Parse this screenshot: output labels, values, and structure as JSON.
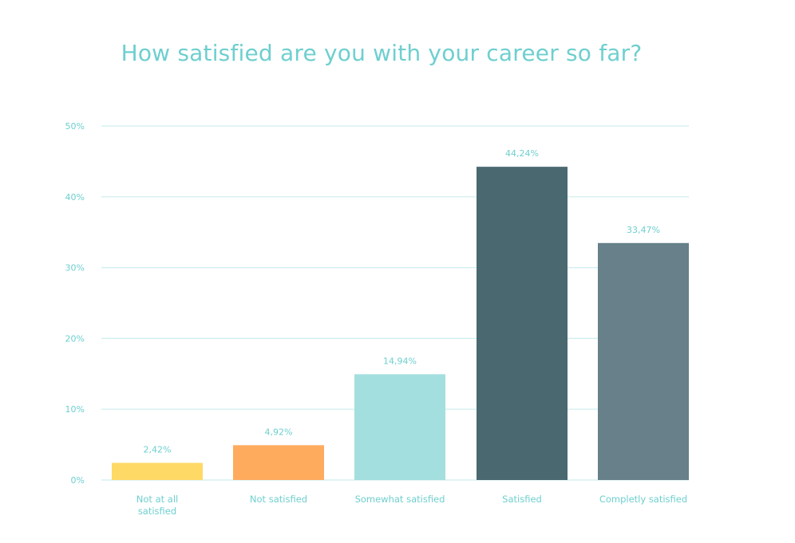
{
  "chart_data": {
    "type": "bar",
    "title": "How satisfied are you with your career so far?",
    "categories": [
      "Not at all satisfied",
      "Not satisfied",
      "Somewhat satisfied",
      "Satisfied",
      "Completly satisfied"
    ],
    "category_lines": [
      [
        "Not at all",
        "satisfied"
      ],
      [
        "Not satisfied"
      ],
      [
        "Somewhat satisfied"
      ],
      [
        "Satisfied"
      ],
      [
        "Completly satisfied"
      ]
    ],
    "values": [
      2.42,
      4.92,
      14.94,
      44.24,
      33.47
    ],
    "value_labels": [
      "2,42%",
      "4,92%",
      "14,94%",
      "44,24%",
      "33,47%"
    ],
    "colors": [
      "#ffd966",
      "#ffab5e",
      "#a3dfde",
      "#4a6870",
      "#67808a"
    ],
    "yticks": [
      0,
      10,
      20,
      30,
      40,
      50
    ],
    "ytick_labels": [
      "0%",
      "10%",
      "20%",
      "30%",
      "40%",
      "50%"
    ],
    "ylim": [
      0,
      50
    ],
    "grid": true,
    "xlabel": "",
    "ylabel": ""
  }
}
